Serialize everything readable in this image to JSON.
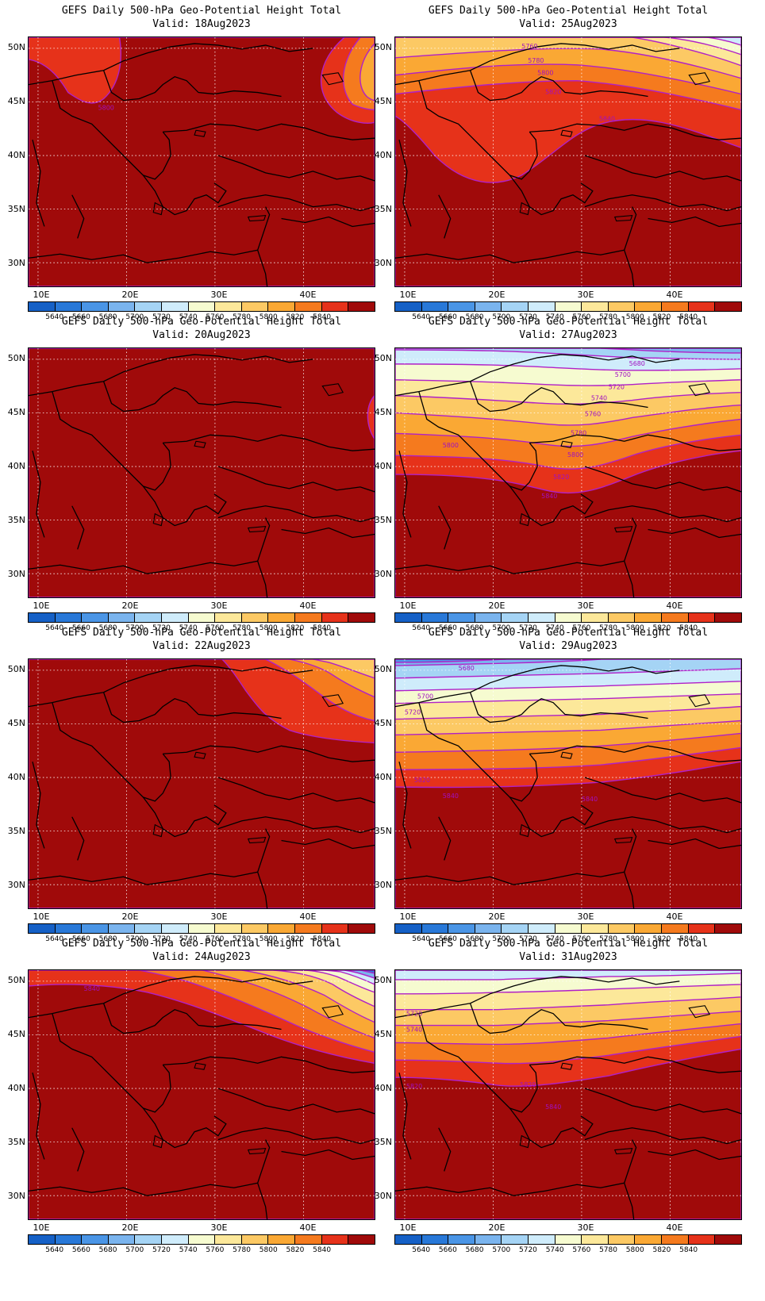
{
  "title_text": "GEFS Daily 500-hPa Geo-Potential Height Total",
  "valid_label": "Valid:",
  "lat_labels": [
    "50N",
    "45N",
    "40N",
    "35N",
    "30N"
  ],
  "lon_labels": [
    "10E",
    "20E",
    "30E",
    "40E"
  ],
  "colorbar": {
    "colors": [
      "#1560c6",
      "#2878d8",
      "#4a95e6",
      "#7ab4ee",
      "#a5d4f5",
      "#cfecfb",
      "#f6fbd0",
      "#fce89a",
      "#fcc964",
      "#faa834",
      "#f57a1e",
      "#e6321a",
      "#a00a0a"
    ],
    "labels": [
      "5640",
      "5660",
      "5680",
      "5700",
      "5720",
      "5740",
      "5760",
      "5780",
      "5800",
      "5820",
      "5840"
    ]
  },
  "panels": [
    {
      "date": "18Aug2023",
      "contour_labels": [
        "5800"
      ]
    },
    {
      "date": "25Aug2023",
      "contour_labels": [
        "5760",
        "5780",
        "5800",
        "5820",
        "5840"
      ]
    },
    {
      "date": "20Aug2023",
      "contour_labels": []
    },
    {
      "date": "27Aug2023",
      "contour_labels": [
        "5680",
        "5700",
        "5720",
        "5740",
        "5760",
        "5780",
        "5800",
        "5800",
        "5820",
        "5840"
      ]
    },
    {
      "date": "22Aug2023",
      "contour_labels": []
    },
    {
      "date": "29Aug2023",
      "contour_labels": [
        "5680",
        "5700",
        "5720",
        "5820",
        "5840",
        "5840"
      ]
    },
    {
      "date": "24Aug2023",
      "contour_labels": [
        "5840"
      ]
    },
    {
      "date": "31Aug2023",
      "contour_labels": [
        "5720",
        "5740",
        "5820",
        "5820",
        "5840"
      ]
    }
  ]
}
